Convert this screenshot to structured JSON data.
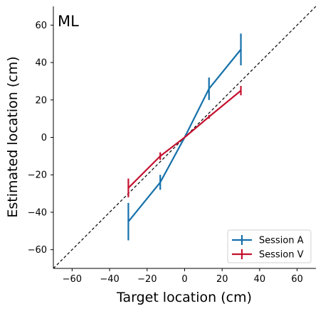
{
  "chart_data": {
    "type": "line",
    "panel_label": "ML",
    "xlabel": "Target location (cm)",
    "ylabel": "Estimated location (cm)",
    "xlim": [
      -70,
      70
    ],
    "ylim": [
      -70,
      70
    ],
    "xticks": [
      -60,
      -40,
      -20,
      0,
      20,
      40,
      60
    ],
    "yticks": [
      -60,
      -40,
      -20,
      0,
      20,
      40,
      60
    ],
    "xtick_labels": [
      "−60",
      "−40",
      "−20",
      "0",
      "20",
      "40",
      "60"
    ],
    "ytick_labels": [
      "−60",
      "−40",
      "−20",
      "0",
      "20",
      "40",
      "60"
    ],
    "identity_line": true,
    "grid": false,
    "legend_position": "bottom-right",
    "series": [
      {
        "name": "Session A",
        "color": "#1570aa",
        "x": [
          -30,
          -13,
          0,
          13,
          30
        ],
        "y": [
          -45,
          -24,
          0,
          26,
          47
        ],
        "yerr": [
          10,
          4,
          0,
          6,
          8.5
        ]
      },
      {
        "name": "Session V",
        "color": "#c4122f",
        "x": [
          -30,
          -13,
          0,
          13,
          30
        ],
        "y": [
          -27,
          -10,
          0,
          11,
          25
        ],
        "yerr": [
          5,
          2,
          0,
          1,
          2.5
        ]
      }
    ]
  }
}
